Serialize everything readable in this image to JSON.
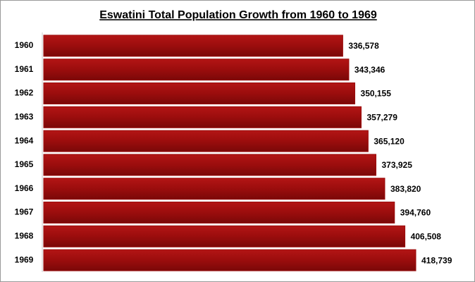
{
  "chart_data": {
    "type": "bar",
    "orientation": "horizontal",
    "title": "Eswatini Total Population Growth from 1960 to 1969",
    "categories": [
      "1960",
      "1961",
      "1962",
      "1963",
      "1964",
      "1965",
      "1966",
      "1967",
      "1968",
      "1969"
    ],
    "values": [
      336578,
      343346,
      350155,
      357279,
      365120,
      373925,
      383820,
      394760,
      406508,
      418739
    ],
    "value_labels": [
      "336,578",
      "343,346",
      "350,155",
      "357,279",
      "365,120",
      "373,925",
      "383,820",
      "394,760",
      "406,508",
      "418,739"
    ],
    "color": "#9b0d0d"
  }
}
